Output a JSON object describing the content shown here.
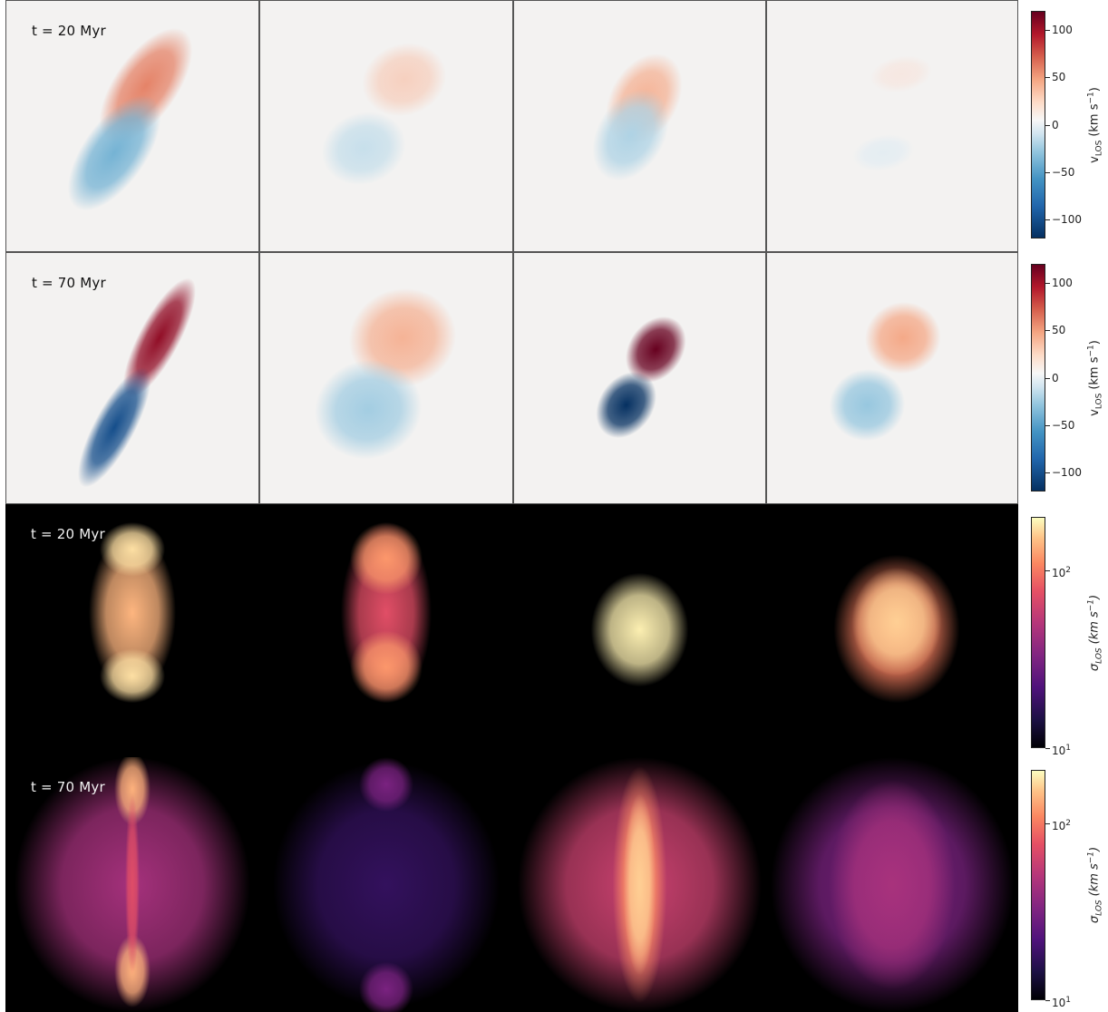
{
  "colors": {
    "background_light": "#f3f2f1",
    "background_dark": "#000000",
    "velocity_positive": "#b2182b",
    "velocity_negative": "#2166ac",
    "sigma_high": "#fcfdbf",
    "sigma_low": "#000004"
  },
  "chart_data": [
    {
      "type": "heatmap",
      "row": "t = 20 Myr",
      "quantity": "v_LOS",
      "panels": [
        {
          "label": "t = 20 Myr",
          "peak_pos": 60,
          "peak_neg": -55
        },
        {
          "label": "",
          "peak_pos": 20,
          "peak_neg": -20
        },
        {
          "label": "",
          "peak_pos": 35,
          "peak_neg": -30
        },
        {
          "label": "",
          "peak_pos": 8,
          "peak_neg": -8
        }
      ],
      "colorbar": {
        "label": "v",
        "label_sub": "LOS",
        "unit_main": "(km s",
        "unit_sup": "−1",
        "unit_end": ")",
        "ticks": [
          "100",
          "50",
          "0",
          "−50",
          "−100"
        ],
        "tick_values": [
          100,
          50,
          0,
          -50,
          -100
        ],
        "range": [
          -120,
          120
        ]
      }
    },
    {
      "type": "heatmap",
      "row": "t = 70 Myr",
      "quantity": "v_LOS",
      "panels": [
        {
          "label": "t = 70 Myr",
          "peak_pos": 110,
          "peak_neg": -110
        },
        {
          "label": "",
          "peak_pos": 35,
          "peak_neg": -35
        },
        {
          "label": "",
          "peak_pos": 120,
          "peak_neg": -120
        },
        {
          "label": "",
          "peak_pos": 40,
          "peak_neg": -40
        }
      ],
      "colorbar": {
        "label": "v",
        "label_sub": "LOS",
        "unit_main": "(km s",
        "unit_sup": "−1",
        "unit_end": ")",
        "ticks": [
          "100",
          "50",
          "0",
          "−50",
          "−100"
        ],
        "tick_values": [
          100,
          50,
          0,
          -50,
          -100
        ],
        "range": [
          -120,
          120
        ]
      }
    },
    {
      "type": "heatmap",
      "row": "t = 20 Myr",
      "quantity": "sigma_LOS",
      "scale": "log",
      "panels": [
        {
          "label": "t = 20 Myr",
          "peak": 180
        },
        {
          "label": "",
          "peak": 140
        },
        {
          "label": "",
          "peak": 190
        },
        {
          "label": "",
          "peak": 170
        }
      ],
      "colorbar": {
        "label": "σ",
        "label_sub": "LOS",
        "unit_main": "(km s",
        "unit_sup": "−1",
        "unit_end": ")",
        "ticks": [
          {
            "base": "10",
            "exp": "2"
          },
          {
            "base": "10",
            "exp": "1"
          }
        ],
        "tick_values": [
          100,
          10
        ],
        "range": [
          10,
          200
        ]
      }
    },
    {
      "type": "heatmap",
      "row": "t = 70 Myr",
      "quantity": "sigma_LOS",
      "scale": "log",
      "panels": [
        {
          "label": "t = 70 Myr",
          "peak": 150
        },
        {
          "label": "",
          "peak": 60
        },
        {
          "label": "",
          "peak": 170
        },
        {
          "label": "",
          "peak": 90
        }
      ],
      "colorbar": {
        "label": "σ",
        "label_sub": "LOS",
        "unit_main": "(km s",
        "unit_sup": "−1",
        "unit_end": ")",
        "ticks": [
          {
            "base": "10",
            "exp": "2"
          },
          {
            "base": "10",
            "exp": "1"
          }
        ],
        "tick_values": [
          100,
          10
        ],
        "range": [
          10,
          200
        ]
      }
    }
  ]
}
